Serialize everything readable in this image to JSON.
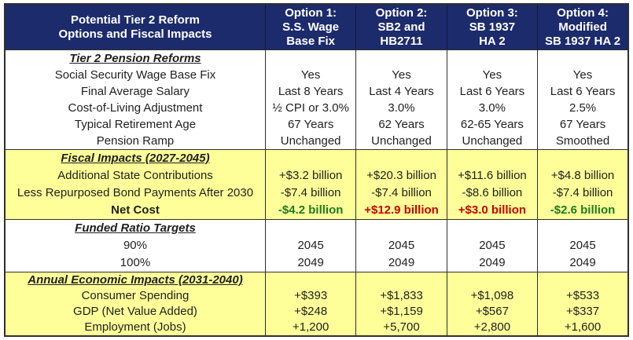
{
  "header": {
    "row_label": "Potential Tier 2 Reform\nOptions and Fiscal Impacts",
    "options": [
      "Option 1:\nS.S. Wage\nBase Fix",
      "Option 2:\nSB2 and\nHB2711",
      "Option 3:\nSB 1937\nHA 2",
      "Option 4:\nModified\nSB 1937 HA 2"
    ]
  },
  "sections": [
    {
      "title": "Tier 2 Pension Reforms",
      "background": "#FFFFFF",
      "rows": [
        {
          "label": "Social Security Wage Base Fix",
          "values": [
            "Yes",
            "Yes",
            "Yes",
            "Yes"
          ]
        },
        {
          "label": "Final Average Salary",
          "values": [
            "Last 8 Years",
            "Last 4 Years",
            "Last 6 Years",
            "Last 6 Years"
          ]
        },
        {
          "label": "Cost-of-Living Adjustment",
          "values": [
            "½ CPI or 3.0%",
            "3.0%",
            "3.0%",
            "2.5%"
          ]
        },
        {
          "label": "Typical Retirement Age",
          "values": [
            "67 Years",
            "62 Years",
            "62-65 Years",
            "67 Years"
          ]
        },
        {
          "label": "Pension Ramp",
          "values": [
            "Unchanged",
            "Unchanged",
            "Unchanged",
            "Smoothed"
          ]
        }
      ]
    },
    {
      "title": "Fiscal Impacts (2027-2045)",
      "background": "#FFFF99",
      "rows": [
        {
          "label": "Additional State Contributions",
          "values": [
            "+$3.2 billion",
            "+$20.3 billion",
            "+$11.6 billion",
            "+$4.8 billion"
          ]
        },
        {
          "label": "Less Repurposed Bond Payments After 2030",
          "values": [
            "-$7.4 billion",
            "-$7.4 billion",
            "-$8.6 billion",
            "-$7.4 billion"
          ]
        },
        {
          "label": "Net Cost",
          "emphasis": "bold",
          "values": [
            "-$4.2 billion",
            "+$12.9 billion",
            "+$3.0 billion",
            "-$2.6 billion"
          ],
          "value_colors": [
            "#1F7A1F",
            "#C80000",
            "#C80000",
            "#1F7A1F"
          ]
        }
      ]
    },
    {
      "title": "Funded Ratio Targets",
      "background": "#FFFFFF",
      "rows": [
        {
          "label": "90%",
          "values": [
            "2045",
            "2045",
            "2045",
            "2045"
          ]
        },
        {
          "label": "100%",
          "values": [
            "2049",
            "2049",
            "2049",
            "2049"
          ]
        }
      ]
    },
    {
      "title": "Annual Economic Impacts (2031-2040)",
      "background": "#FFFF99",
      "rows": [
        {
          "label": "Consumer Spending",
          "values": [
            "+$393",
            "+$1,833",
            "+$1,098",
            "+$533"
          ]
        },
        {
          "label": "GDP (Net Value Added)",
          "values": [
            "+$248",
            "+$1,159",
            "+$567",
            "+$337"
          ]
        },
        {
          "label": "Employment (Jobs)",
          "values": [
            "+1,200",
            "+5,700",
            "+2,800",
            "+1,600"
          ]
        }
      ]
    }
  ],
  "colors": {
    "header_background": "#1C2B6B",
    "header_text": "#FFFFFF",
    "section_highlight_yellow": "#FFFF99",
    "savings_green": "#1F7A1F",
    "cost_red": "#C80000",
    "border": "#2F2F2F"
  }
}
